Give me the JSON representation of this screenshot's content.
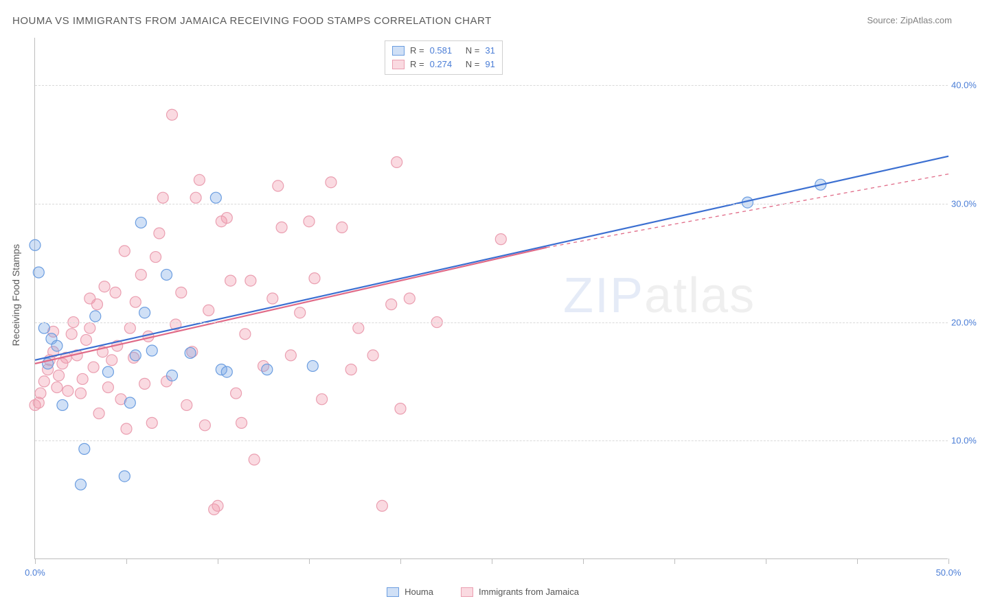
{
  "title": "HOUMA VS IMMIGRANTS FROM JAMAICA RECEIVING FOOD STAMPS CORRELATION CHART",
  "source_prefix": "Source: ",
  "source_name": "ZipAtlas.com",
  "y_axis_label": "Receiving Food Stamps",
  "watermark": {
    "part1": "ZIP",
    "part2": "atlas"
  },
  "chart": {
    "type": "scatter",
    "xlim": [
      0,
      50
    ],
    "ylim": [
      0,
      44
    ],
    "x_ticks": [
      0,
      5,
      10,
      15,
      20,
      25,
      30,
      35,
      40,
      45,
      50
    ],
    "x_tick_labels": {
      "0": "0.0%",
      "50": "50.0%"
    },
    "y_gridlines": [
      10,
      20,
      30,
      40
    ],
    "y_tick_labels": {
      "10": "10.0%",
      "20": "20.0%",
      "30": "30.0%",
      "40": "40.0%"
    },
    "background_color": "#ffffff",
    "grid_color": "#d9d9d9",
    "axis_color": "#bdbdbd",
    "marker_radius": 8,
    "marker_stroke_width": 1.2,
    "line_width": 2.2,
    "series": [
      {
        "name": "Houma",
        "fill": "rgba(120,165,230,0.35)",
        "stroke": "#6b9de0",
        "line_color": "#3b6fd1",
        "r_value": "0.581",
        "n_value": "31",
        "regression": {
          "x1": 0,
          "y1": 16.8,
          "x2": 50,
          "y2": 34
        },
        "dashed_ext": null,
        "points": [
          [
            0,
            26.5
          ],
          [
            0.2,
            24.2
          ],
          [
            0.5,
            19.5
          ],
          [
            0.7,
            16.5
          ],
          [
            0.9,
            18.6
          ],
          [
            1.2,
            18.0
          ],
          [
            1.5,
            13.0
          ],
          [
            2.5,
            6.3
          ],
          [
            2.7,
            9.3
          ],
          [
            3.3,
            20.5
          ],
          [
            4.0,
            15.8
          ],
          [
            4.9,
            7.0
          ],
          [
            5.2,
            13.2
          ],
          [
            5.5,
            17.2
          ],
          [
            5.8,
            28.4
          ],
          [
            6.0,
            20.8
          ],
          [
            6.4,
            17.6
          ],
          [
            7.2,
            24.0
          ],
          [
            7.5,
            15.5
          ],
          [
            8.5,
            17.4
          ],
          [
            9.9,
            30.5
          ],
          [
            10.2,
            16.0
          ],
          [
            10.5,
            15.8
          ],
          [
            12.7,
            16.0
          ],
          [
            15.2,
            16.3
          ],
          [
            39.0,
            30.1
          ],
          [
            43.0,
            31.6
          ]
        ]
      },
      {
        "name": "Immigrants from Jamaica",
        "fill": "rgba(240,150,170,0.35)",
        "stroke": "#ea9eb0",
        "line_color": "#e06a87",
        "r_value": "0.274",
        "n_value": "91",
        "regression": {
          "x1": 0,
          "y1": 16.5,
          "x2": 28,
          "y2": 26.3
        },
        "dashed_ext": {
          "x1": 28,
          "y1": 26.3,
          "x2": 50,
          "y2": 32.5
        },
        "points": [
          [
            0,
            13.0
          ],
          [
            0.2,
            13.2
          ],
          [
            0.3,
            14.0
          ],
          [
            0.5,
            15.0
          ],
          [
            0.7,
            16.0
          ],
          [
            0.8,
            16.8
          ],
          [
            1.0,
            17.5
          ],
          [
            1.0,
            19.2
          ],
          [
            1.2,
            14.5
          ],
          [
            1.3,
            15.5
          ],
          [
            1.5,
            16.5
          ],
          [
            1.7,
            17.0
          ],
          [
            1.8,
            14.2
          ],
          [
            2.0,
            19.0
          ],
          [
            2.1,
            20.0
          ],
          [
            2.3,
            17.2
          ],
          [
            2.5,
            14.0
          ],
          [
            2.6,
            15.2
          ],
          [
            2.8,
            18.5
          ],
          [
            3.0,
            19.5
          ],
          [
            3.0,
            22.0
          ],
          [
            3.2,
            16.2
          ],
          [
            3.4,
            21.5
          ],
          [
            3.5,
            12.3
          ],
          [
            3.7,
            17.5
          ],
          [
            3.8,
            23.0
          ],
          [
            4.0,
            14.5
          ],
          [
            4.2,
            16.8
          ],
          [
            4.4,
            22.5
          ],
          [
            4.5,
            18.0
          ],
          [
            4.7,
            13.5
          ],
          [
            4.9,
            26.0
          ],
          [
            5.0,
            11.0
          ],
          [
            5.2,
            19.5
          ],
          [
            5.4,
            17.0
          ],
          [
            5.5,
            21.7
          ],
          [
            5.8,
            24.0
          ],
          [
            6.0,
            14.8
          ],
          [
            6.2,
            18.8
          ],
          [
            6.4,
            11.5
          ],
          [
            6.6,
            25.5
          ],
          [
            6.8,
            27.5
          ],
          [
            7.0,
            30.5
          ],
          [
            7.2,
            15.0
          ],
          [
            7.5,
            37.5
          ],
          [
            7.7,
            19.8
          ],
          [
            8.0,
            22.5
          ],
          [
            8.3,
            13.0
          ],
          [
            8.6,
            17.5
          ],
          [
            8.8,
            30.5
          ],
          [
            9.0,
            32.0
          ],
          [
            9.3,
            11.3
          ],
          [
            9.5,
            21.0
          ],
          [
            9.8,
            4.2
          ],
          [
            10.0,
            4.5
          ],
          [
            10.2,
            28.5
          ],
          [
            10.5,
            28.8
          ],
          [
            10.7,
            23.5
          ],
          [
            11.0,
            14.0
          ],
          [
            11.3,
            11.5
          ],
          [
            11.5,
            19.0
          ],
          [
            11.8,
            23.5
          ],
          [
            12.0,
            8.4
          ],
          [
            12.5,
            16.3
          ],
          [
            13.0,
            22.0
          ],
          [
            13.3,
            31.5
          ],
          [
            13.5,
            28.0
          ],
          [
            14.0,
            17.2
          ],
          [
            14.5,
            20.8
          ],
          [
            15.0,
            28.5
          ],
          [
            15.3,
            23.7
          ],
          [
            15.7,
            13.5
          ],
          [
            16.2,
            31.8
          ],
          [
            16.8,
            28.0
          ],
          [
            17.3,
            16.0
          ],
          [
            17.7,
            19.5
          ],
          [
            18.5,
            17.2
          ],
          [
            19.0,
            4.5
          ],
          [
            19.5,
            21.5
          ],
          [
            19.8,
            33.5
          ],
          [
            20.0,
            12.7
          ],
          [
            20.5,
            22.0
          ],
          [
            22.0,
            20.0
          ],
          [
            25.5,
            27.0
          ]
        ]
      }
    ]
  },
  "legend_top": {
    "r_label": "R =",
    "n_label": "N ="
  },
  "legend_bottom": {
    "items": [
      "Houma",
      "Immigrants from Jamaica"
    ]
  }
}
